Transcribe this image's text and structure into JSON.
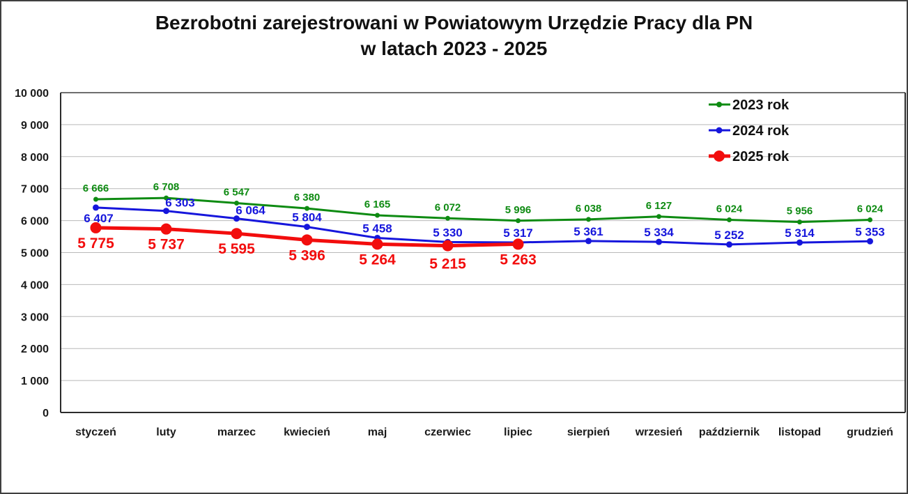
{
  "title": {
    "line1": "Bezrobotni zarejestrowani w Powiatowym Urzędzie Pracy dla PN",
    "line2": "w latach 2023 - 2025"
  },
  "chart_data": {
    "type": "line",
    "categories": [
      "styczeń",
      "luty",
      "marzec",
      "kwiecień",
      "maj",
      "czerwiec",
      "lipiec",
      "sierpień",
      "wrzesień",
      "październik",
      "listopad",
      "grudzień"
    ],
    "series": [
      {
        "name": "2023 rok",
        "color": "#0E8B12",
        "values": [
          6666,
          6708,
          6547,
          6380,
          6165,
          6072,
          5996,
          6038,
          6127,
          6024,
          5956,
          6024
        ]
      },
      {
        "name": "2024 rok",
        "color": "#1616DC",
        "values": [
          6407,
          6303,
          6064,
          5804,
          5458,
          5330,
          5317,
          5361,
          5334,
          5252,
          5314,
          5353
        ]
      },
      {
        "name": "2025 rok",
        "color": "#F20D0D",
        "values": [
          5775,
          5737,
          5595,
          5396,
          5264,
          5215,
          5263
        ]
      }
    ],
    "xlabel": "",
    "ylabel": "",
    "ylim": [
      0,
      10000
    ],
    "ytick_step": 1000,
    "ytick_labels": [
      "0",
      "1 000",
      "2 000",
      "3 000",
      "4 000",
      "5 000",
      "6 000",
      "7 000",
      "8 000",
      "9 000",
      "10 000"
    ],
    "grid": true,
    "data_labels": true,
    "number_format": "space-thousands",
    "legend_position": "top-right",
    "legend": [
      "2023 rok",
      "2024 rok",
      "2025 rok"
    ],
    "axis_text_color": "#1a1a1a",
    "gridline_color": "#b9b9b9",
    "plot_border_color": "#2b2b2b"
  }
}
